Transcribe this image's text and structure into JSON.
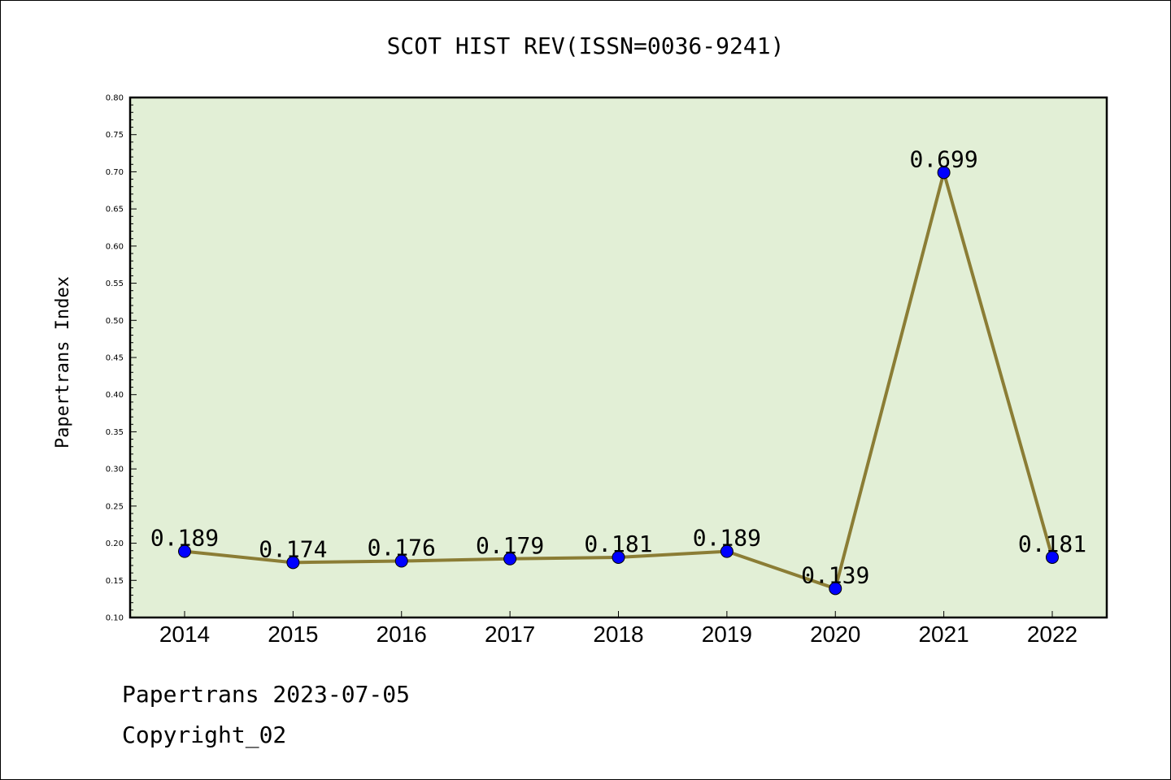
{
  "chart_data": {
    "type": "line",
    "title": "SCOT HIST REV(ISSN=0036-9241)",
    "xlabel": "",
    "ylabel": "Papertrans Index",
    "categories": [
      "2014",
      "2015",
      "2016",
      "2017",
      "2018",
      "2019",
      "2020",
      "2021",
      "2022"
    ],
    "values": [
      0.189,
      0.174,
      0.176,
      0.179,
      0.181,
      0.189,
      0.139,
      0.699,
      0.181
    ],
    "data_labels": [
      "0.189",
      "0.174",
      "0.176",
      "0.179",
      "0.181",
      "0.189",
      "0.139",
      "0.699",
      "0.181"
    ],
    "ylim": [
      0.1,
      0.8
    ],
    "yticks": [
      "0.10",
      "0.15",
      "0.20",
      "0.25",
      "0.30",
      "0.35",
      "0.40",
      "0.45",
      "0.50",
      "0.55",
      "0.60",
      "0.65",
      "0.70",
      "0.75",
      "0.80"
    ],
    "grid": false,
    "legend": "none",
    "colors": {
      "plot_background": "#e2efd6",
      "line": "#8b7d35",
      "marker": "#0000ff"
    }
  },
  "footer": {
    "line1": "Papertrans 2023-07-05",
    "line2": "Copyright_02"
  }
}
